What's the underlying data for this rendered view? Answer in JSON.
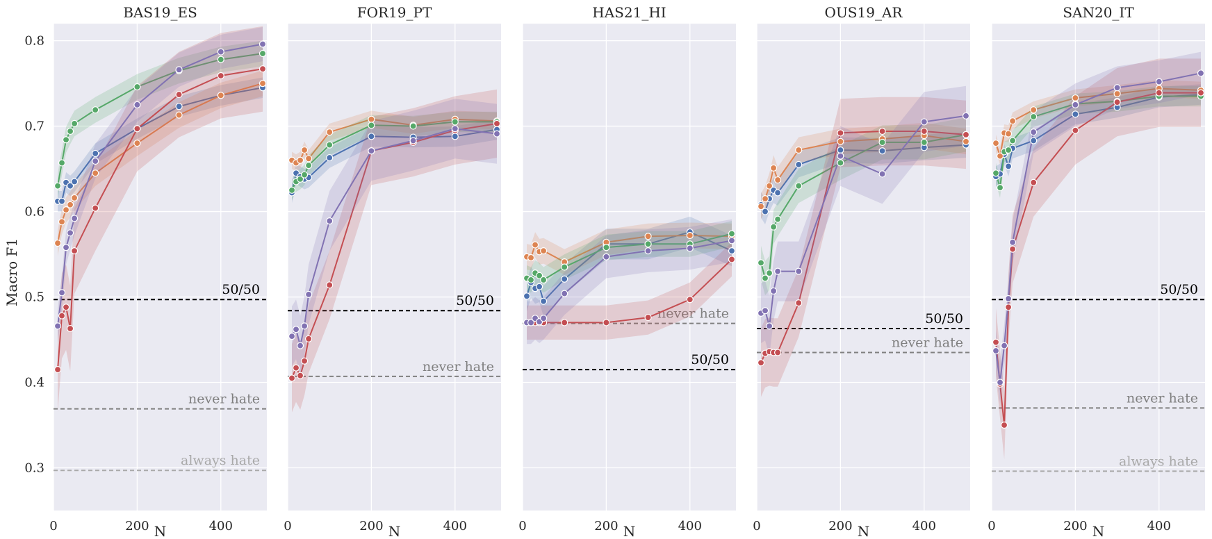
{
  "chart_data": {
    "type": "line",
    "ylabel": "Macro F1",
    "xlabel": "N",
    "xlim": [
      0,
      510
    ],
    "ylim": [
      0.25,
      0.82
    ],
    "xticks": [
      0,
      200,
      400
    ],
    "yticks": [
      0.3,
      0.4,
      0.5,
      0.6,
      0.7,
      0.8
    ],
    "ytick_labels": [
      "0.3",
      "0.4",
      "0.5",
      "0.6",
      "0.7",
      "0.8"
    ],
    "grid": true,
    "series_colors": [
      "#4c72b0",
      "#dd8452",
      "#55a868",
      "#c44e52",
      "#8172b2"
    ],
    "reference_styles": {
      "50/50": {
        "color": "#000000",
        "dash": "6,4"
      },
      "never hate": {
        "color": "#808080",
        "dash": "6,4"
      },
      "always hate": {
        "color": "#a9a9a9",
        "dash": "6,4"
      }
    },
    "panels": [
      {
        "title": "BAS19_ES",
        "references": [
          {
            "label": "50/50",
            "y": 0.497
          },
          {
            "label": "never hate",
            "y": 0.369
          },
          {
            "label": "always hate",
            "y": 0.297
          }
        ],
        "series": [
          {
            "x": [
              10,
              20,
              30,
              40,
              50,
              100,
              200,
              300,
              400,
              500
            ],
            "y": [
              0.612,
              0.612,
              0.634,
              0.63,
              0.635,
              0.668,
              0.697,
              0.723,
              0.736,
              0.745
            ],
            "band": 0.012
          },
          {
            "x": [
              10,
              20,
              30,
              40,
              50,
              100,
              200,
              300,
              400,
              500
            ],
            "y": [
              0.563,
              0.588,
              0.602,
              0.608,
              0.616,
              0.645,
              0.68,
              0.713,
              0.736,
              0.75
            ],
            "band": 0.015
          },
          {
            "x": [
              10,
              20,
              30,
              40,
              50,
              100,
              200,
              300,
              400,
              500
            ],
            "y": [
              0.63,
              0.657,
              0.684,
              0.694,
              0.703,
              0.719,
              0.746,
              0.765,
              0.778,
              0.785
            ],
            "band": 0.015
          },
          {
            "x": [
              10,
              20,
              30,
              40,
              50,
              100,
              200,
              300,
              400,
              500
            ],
            "y": [
              0.415,
              0.478,
              0.488,
              0.463,
              0.554,
              0.604,
              0.697,
              0.737,
              0.759,
              0.767
            ],
            "band": 0.05
          },
          {
            "x": [
              10,
              20,
              30,
              40,
              50,
              100,
              200,
              300,
              400,
              500
            ],
            "y": [
              0.466,
              0.505,
              0.558,
              0.575,
              0.592,
              0.659,
              0.725,
              0.766,
              0.787,
              0.796
            ],
            "band": 0.02
          }
        ]
      },
      {
        "title": "FOR19_PT",
        "references": [
          {
            "label": "50/50",
            "y": 0.484
          },
          {
            "label": "never hate",
            "y": 0.407
          }
        ],
        "series": [
          {
            "x": [
              10,
              20,
              30,
              40,
              50,
              100,
              200,
              300,
              400,
              500
            ],
            "y": [
              0.622,
              0.645,
              0.641,
              0.638,
              0.64,
              0.663,
              0.688,
              0.687,
              0.688,
              0.696
            ],
            "band": 0.012
          },
          {
            "x": [
              10,
              20,
              30,
              40,
              50,
              100,
              200,
              300,
              400,
              500
            ],
            "y": [
              0.66,
              0.657,
              0.66,
              0.672,
              0.662,
              0.693,
              0.708,
              0.701,
              0.708,
              0.706
            ],
            "band": 0.01
          },
          {
            "x": [
              10,
              20,
              30,
              40,
              50,
              100,
              200,
              300,
              400,
              500
            ],
            "y": [
              0.625,
              0.635,
              0.638,
              0.643,
              0.654,
              0.678,
              0.701,
              0.7,
              0.705,
              0.705
            ],
            "band": 0.012
          },
          {
            "x": [
              10,
              20,
              30,
              40,
              50,
              100,
              200,
              300,
              400,
              500
            ],
            "y": [
              0.405,
              0.417,
              0.408,
              0.425,
              0.451,
              0.514,
              0.671,
              0.681,
              0.695,
              0.703
            ],
            "band": 0.04
          },
          {
            "x": [
              10,
              20,
              30,
              40,
              50,
              100,
              200,
              300,
              400,
              500
            ],
            "y": [
              0.454,
              0.462,
              0.443,
              0.466,
              0.503,
              0.589,
              0.671,
              0.683,
              0.697,
              0.691
            ],
            "band": 0.035
          }
        ]
      },
      {
        "title": "HAS21_HI",
        "references": [
          {
            "label": "never hate",
            "y": 0.469
          },
          {
            "label": "50/50",
            "y": 0.415
          }
        ],
        "series": [
          {
            "x": [
              10,
              20,
              30,
              40,
              50,
              100,
              200,
              300,
              400,
              500
            ],
            "y": [
              0.501,
              0.517,
              0.51,
              0.512,
              0.495,
              0.521,
              0.562,
              0.562,
              0.576,
              0.554
            ],
            "band": 0.018
          },
          {
            "x": [
              10,
              20,
              30,
              40,
              50,
              100,
              200,
              300,
              400,
              500
            ],
            "y": [
              0.547,
              0.546,
              0.561,
              0.553,
              0.554,
              0.541,
              0.564,
              0.571,
              0.572,
              0.571
            ],
            "band": 0.015
          },
          {
            "x": [
              10,
              20,
              30,
              40,
              50,
              100,
              200,
              300,
              400,
              500
            ],
            "y": [
              0.522,
              0.52,
              0.528,
              0.525,
              0.52,
              0.535,
              0.558,
              0.562,
              0.562,
              0.574
            ],
            "band": 0.015
          },
          {
            "x": [
              10,
              20,
              30,
              40,
              50,
              100,
              200,
              300,
              400,
              500
            ],
            "y": [
              0.47,
              0.47,
              0.47,
              0.47,
              0.47,
              0.47,
              0.47,
              0.476,
              0.497,
              0.544
            ],
            "band": 0.02
          },
          {
            "x": [
              10,
              20,
              30,
              40,
              50,
              100,
              200,
              300,
              400,
              500
            ],
            "y": [
              0.47,
              0.47,
              0.475,
              0.471,
              0.475,
              0.504,
              0.547,
              0.554,
              0.557,
              0.566
            ],
            "band": 0.025
          }
        ]
      },
      {
        "title": "OUS19_AR",
        "references": [
          {
            "label": "50/50",
            "y": 0.463
          },
          {
            "label": "never hate",
            "y": 0.435
          }
        ],
        "series": [
          {
            "x": [
              10,
              20,
              30,
              40,
              50,
              100,
              200,
              300,
              400,
              500
            ],
            "y": [
              0.608,
              0.6,
              0.615,
              0.625,
              0.622,
              0.655,
              0.672,
              0.671,
              0.675,
              0.678
            ],
            "band": 0.015
          },
          {
            "x": [
              10,
              20,
              30,
              40,
              50,
              100,
              200,
              300,
              400,
              500
            ],
            "y": [
              0.606,
              0.615,
              0.63,
              0.651,
              0.637,
              0.672,
              0.682,
              0.685,
              0.689,
              0.682
            ],
            "band": 0.015
          },
          {
            "x": [
              10,
              20,
              30,
              40,
              50,
              100,
              200,
              300,
              400,
              500
            ],
            "y": [
              0.54,
              0.522,
              0.528,
              0.582,
              0.591,
              0.63,
              0.657,
              0.681,
              0.681,
              0.69
            ],
            "band": 0.02
          },
          {
            "x": [
              10,
              20,
              30,
              40,
              50,
              100,
              200,
              300,
              400,
              500
            ],
            "y": [
              0.423,
              0.434,
              0.436,
              0.435,
              0.435,
              0.493,
              0.692,
              0.694,
              0.694,
              0.69
            ],
            "band": 0.04
          },
          {
            "x": [
              10,
              20,
              30,
              40,
              50,
              100,
              200,
              300,
              400,
              500
            ],
            "y": [
              0.481,
              0.484,
              0.466,
              0.507,
              0.53,
              0.53,
              0.665,
              0.644,
              0.705,
              0.712
            ],
            "band": 0.035
          }
        ]
      },
      {
        "title": "SAN20_IT",
        "references": [
          {
            "label": "50/50",
            "y": 0.497
          },
          {
            "label": "never hate",
            "y": 0.37
          },
          {
            "label": "always hate",
            "y": 0.296
          }
        ],
        "series": [
          {
            "x": [
              10,
              20,
              30,
              40,
              50,
              100,
              200,
              300,
              400,
              500
            ],
            "y": [
              0.641,
              0.644,
              0.667,
              0.653,
              0.674,
              0.683,
              0.714,
              0.722,
              0.734,
              0.737
            ],
            "band": 0.012
          },
          {
            "x": [
              10,
              20,
              30,
              40,
              50,
              100,
              200,
              300,
              400,
              500
            ],
            "y": [
              0.68,
              0.665,
              0.692,
              0.691,
              0.706,
              0.719,
              0.733,
              0.738,
              0.744,
              0.742
            ],
            "band": 0.01
          },
          {
            "x": [
              10,
              20,
              30,
              40,
              50,
              100,
              200,
              300,
              400,
              500
            ],
            "y": [
              0.645,
              0.628,
              0.67,
              0.672,
              0.683,
              0.711,
              0.726,
              0.729,
              0.735,
              0.735
            ],
            "band": 0.012
          },
          {
            "x": [
              10,
              20,
              30,
              40,
              50,
              100,
              200,
              300,
              400,
              500
            ],
            "y": [
              0.447,
              0.398,
              0.35,
              0.488,
              0.556,
              0.634,
              0.695,
              0.728,
              0.739,
              0.739
            ],
            "band": 0.04
          },
          {
            "x": [
              10,
              20,
              30,
              40,
              50,
              100,
              200,
              300,
              400,
              500
            ],
            "y": [
              0.437,
              0.4,
              0.443,
              0.498,
              0.564,
              0.693,
              0.725,
              0.745,
              0.752,
              0.762
            ],
            "band": 0.025
          }
        ]
      }
    ]
  }
}
